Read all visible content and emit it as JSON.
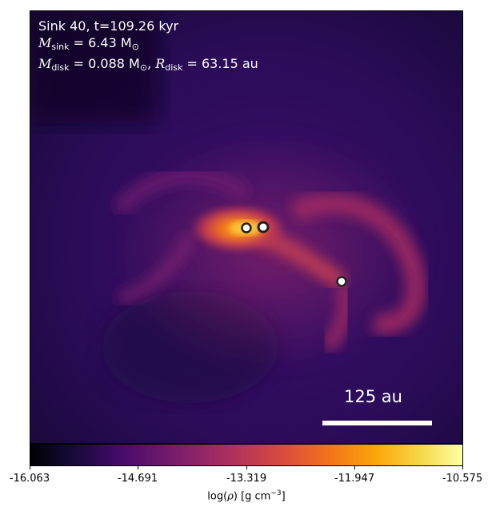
{
  "info": {
    "line1": "Sink 40, t=109.26 kyr",
    "msink_symbol": "M",
    "msink_sub": "sink",
    "msink_value": "= 6.43 M",
    "msink_unit_sub": "⊙",
    "mdisk_symbol": "M",
    "mdisk_sub": "disk",
    "mdisk_value": "= 0.088 M",
    "mdisk_unit_sub": "⊙",
    "rdisk_symbol": "R",
    "rdisk_sub": "disk",
    "rdisk_value": "= 63.15 au"
  },
  "scale_bar": {
    "label": "125 au"
  },
  "colorbar": {
    "colormap": "inferno",
    "ticks": [
      "-16.063",
      "-14.691",
      "-13.319",
      "-11.947",
      "-10.575"
    ],
    "label_prefix": "log(",
    "label_symbol": "ρ",
    "label_suffix": ") [g cm",
    "label_exp": "−3",
    "label_end": "]"
  },
  "sinks": {
    "count": 3
  },
  "colors": {
    "background_low": "#1e0b3e",
    "density_peak": "#f9a11c",
    "sink_marker_fill": "#ffffff",
    "sink_marker_ring": "#222222"
  }
}
